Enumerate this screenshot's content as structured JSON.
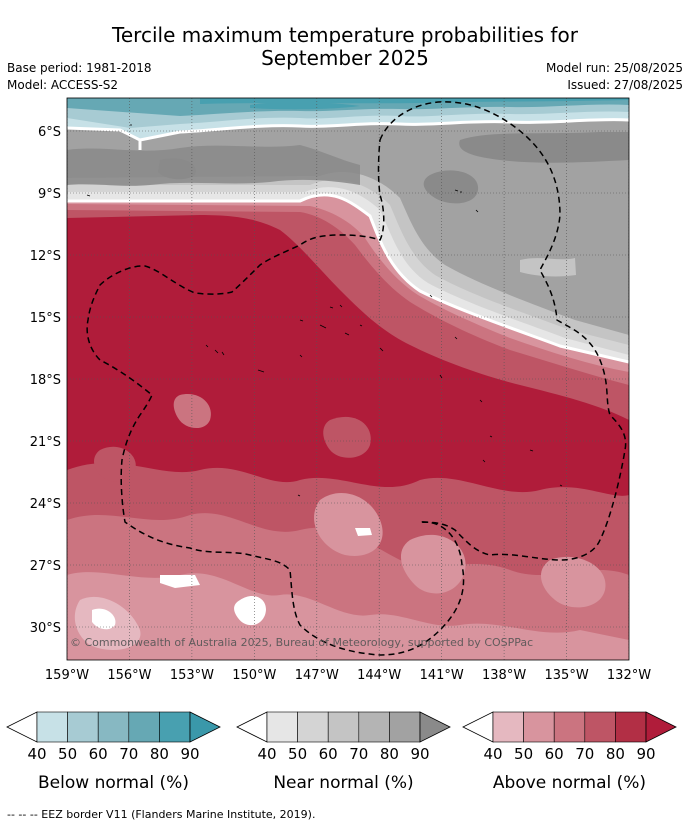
{
  "title_line1": "Tercile maximum temperature probabilities for",
  "title_line2": "September 2025",
  "base_period": "Base period: 1981-2018",
  "model": "Model: ACCESS-S2",
  "model_run": "Model run: 25/08/2025",
  "issued": "Issued: 27/08/2025",
  "copyright": "© Commonwealth of Australia 2025, Bureau of Meteorology, supported by COSPPac",
  "footnote": "--  --  -- EEZ border V11 (Flanders Marine Institute, 2019).",
  "lat_labels": [
    "6°S",
    "9°S",
    "12°S",
    "15°S",
    "18°S",
    "21°S",
    "24°S",
    "27°S",
    "30°S"
  ],
  "lon_labels": [
    "159°W",
    "156°W",
    "153°W",
    "150°W",
    "147°W",
    "144°W",
    "141°W",
    "138°W",
    "135°W",
    "132°W"
  ],
  "legends": [
    {
      "caption": "Below normal (%)",
      "ticks": [
        "40",
        "50",
        "60",
        "70",
        "80",
        "90"
      ],
      "colors": [
        "#ffffff",
        "#c7e1e7",
        "#a7cbd3",
        "#87b8c2",
        "#66a8b4",
        "#48a0b0",
        "#3a98aa"
      ]
    },
    {
      "caption": "Near normal (%)",
      "ticks": [
        "40",
        "50",
        "60",
        "70",
        "80",
        "90"
      ],
      "colors": [
        "#ffffff",
        "#e6e6e6",
        "#d4d4d4",
        "#c4c4c4",
        "#b4b4b4",
        "#a2a2a2",
        "#8a8a8a"
      ]
    },
    {
      "caption": "Above normal (%)",
      "ticks": [
        "40",
        "50",
        "60",
        "70",
        "80",
        "90"
      ],
      "colors": [
        "#ffffff",
        "#e5b8c0",
        "#d8949e",
        "#cb7480",
        "#be5565",
        "#b22f45",
        "#b01c3a"
      ]
    }
  ]
}
